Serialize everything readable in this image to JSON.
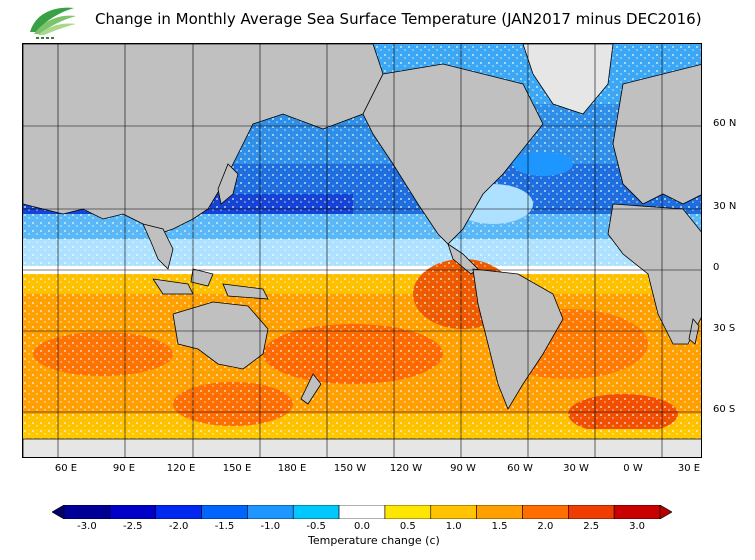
{
  "title": "Change in Monthly Average Sea Surface Temperature (JAN2017 minus DEC2016)",
  "logo": {
    "name": "observatory-logo",
    "color": "#3a9a3a",
    "text": ""
  },
  "map": {
    "lat_labels": [
      "60 N",
      "30 N",
      "0",
      "30 S",
      "60 S"
    ],
    "lon_labels": [
      "60 E",
      "90 E",
      "120 E",
      "150 E",
      "180 E",
      "150 W",
      "120 W",
      "90 W",
      "60 W",
      "30 W",
      "0 W",
      "30 E"
    ],
    "land_color": "#c0c0c0",
    "ice_color": "#e6e6e6"
  },
  "colorbar": {
    "title": "Temperature change  (c)",
    "ticks": [
      "-3.0",
      "-2.5",
      "-2.0",
      "-1.5",
      "-1.0",
      "-0.5",
      "0.0",
      "0.5",
      "1.0",
      "1.5",
      "2.0",
      "2.5",
      "3.0"
    ],
    "colors": [
      "#000096",
      "#0000c8",
      "#0028f0",
      "#0064ff",
      "#1e96ff",
      "#00c8ff",
      "#ffffff",
      "#ffe600",
      "#ffc300",
      "#ffa000",
      "#ff6e00",
      "#f03c00",
      "#c80000"
    ],
    "low_arrow_color": "#00006e",
    "high_arrow_color": "#b40000"
  }
}
